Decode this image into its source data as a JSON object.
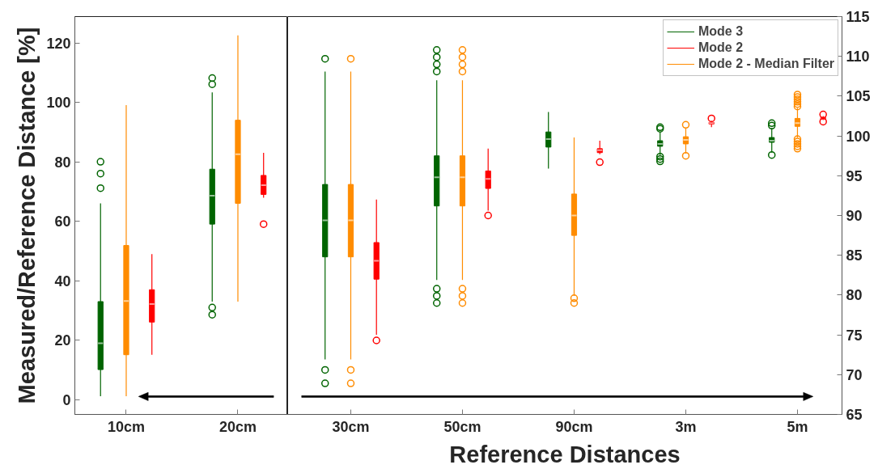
{
  "chart_data": [
    {
      "type": "box",
      "ylabel": "Measured/Reference Distance [%]",
      "categories": [
        "10cm",
        "20cm"
      ],
      "ylim": [
        -5,
        129
      ],
      "yticks": [
        0,
        20,
        40,
        60,
        80,
        100,
        120
      ],
      "marker": "circle",
      "series": [
        {
          "color": "#006400",
          "boxes": [
            {
              "low": 1.1,
              "q1": 10.1,
              "median": 19.0,
              "q3": 33.0,
              "high": 66.1,
              "outliers": [
                71.2,
                76.1,
                80.1
              ]
            },
            {
              "low": 33.0,
              "q1": 59.1,
              "median": 68.7,
              "q3": 77.6,
              "high": 103.5,
              "outliers": [
                28.6,
                31.0,
                106.2,
                108.3
              ]
            }
          ]
        },
        {
          "color": "#ff0000",
          "boxes": [
            {
              "low": 15.1,
              "q1": 26.1,
              "median": 32.2,
              "q3": 37.0,
              "high": 49.0
            },
            {
              "low": 68.0,
              "q1": 69.1,
              "median": 72.2,
              "q3": 75.5,
              "high": 83.1,
              "outliers": [
                59.1
              ]
            }
          ]
        },
        {
          "color": "#ff8c00",
          "boxes": [
            {
              "low": 1.1,
              "q1": 15.1,
              "median": 33.2,
              "q3": 51.9,
              "high": 99.2
            },
            {
              "low": 33.0,
              "q1": 66.1,
              "median": 82.6,
              "q3": 94.1,
              "high": 122.7
            }
          ]
        }
      ]
    },
    {
      "type": "box",
      "xlabel": "Reference Distances",
      "categories": [
        "30cm",
        "50cm",
        "90cm",
        "3m",
        "5m"
      ],
      "ylim": [
        65,
        115
      ],
      "yticks": [
        65,
        70,
        75,
        80,
        85,
        90,
        95,
        100,
        105,
        110,
        115
      ],
      "legend": "top right",
      "marker": "circle",
      "series": [
        {
          "name": "Mode 3",
          "color": "#006400",
          "boxes": [
            {
              "low": 71.9,
              "q1": 84.8,
              "median": 89.4,
              "q3": 93.9,
              "high": 108.1,
              "outliers": [
                68.9,
                70.6,
                109.7
              ]
            },
            {
              "low": 81.9,
              "q1": 91.2,
              "median": 94.8,
              "q3": 97.5,
              "high": 107.0,
              "outliers": [
                79.0,
                79.9,
                80.8,
                108.1,
                109.0,
                109.9,
                110.8
              ]
            },
            {
              "low": 95.9,
              "q1": 98.6,
              "median": 99.6,
              "q3": 100.5,
              "high": 103.0
            },
            {
              "low": 97.6,
              "q1": 98.7,
              "median": 99.0,
              "q3": 99.4,
              "high": 100.5,
              "outliers": [
                96.8,
                97.1,
                97.4,
                100.9,
                101.1
              ]
            },
            {
              "low": 97.9,
              "q1": 99.2,
              "median": 99.4,
              "q3": 99.8,
              "high": 101.0,
              "outliers": [
                97.6,
                101.3,
                101.6
              ]
            }
          ]
        },
        {
          "name": "Mode 2",
          "color": "#ff0000",
          "boxes": [
            {
              "low": 75.0,
              "q1": 82.0,
              "median": 84.3,
              "q3": 86.6,
              "high": 92.0,
              "outliers": [
                74.3
              ]
            },
            {
              "low": 90.6,
              "q1": 93.4,
              "median": 94.6,
              "q3": 95.6,
              "high": 98.4,
              "outliers": [
                90.0
              ]
            },
            {
              "low": 97.7,
              "q1": 97.9,
              "median": 98.2,
              "q3": 98.4,
              "high": 99.4,
              "outliers": [
                96.7
              ]
            },
            {
              "low": 101.1,
              "q1": 101.5,
              "median": 101.6,
              "q3": 101.7,
              "high": 101.9,
              "outliers": [
                102.2
              ]
            },
            {
              "low": 102.0,
              "q1": 102.1,
              "median": 102.2,
              "q3": 102.3,
              "high": 102.5,
              "outliers": [
                101.8,
                102.7
              ]
            }
          ]
        },
        {
          "name": "Mode 2 - Median Filter",
          "color": "#ff8c00",
          "boxes": [
            {
              "low": 71.9,
              "q1": 84.8,
              "median": 89.4,
              "q3": 93.9,
              "high": 108.1,
              "outliers": [
                68.9,
                70.6,
                109.7
              ]
            },
            {
              "low": 81.9,
              "q1": 91.2,
              "median": 94.8,
              "q3": 97.5,
              "high": 107.0,
              "outliers": [
                79.0,
                79.9,
                80.8,
                108.1,
                109.0,
                109.9,
                110.8
              ]
            },
            {
              "low": 79.9,
              "q1": 87.5,
              "median": 90.0,
              "q3": 92.7,
              "high": 99.8,
              "outliers": [
                79.0,
                79.6
              ]
            },
            {
              "low": 97.8,
              "q1": 99.0,
              "median": 99.5,
              "q3": 99.9,
              "high": 101.0,
              "outliers": [
                97.5,
                101.4
              ]
            },
            {
              "low": 99.8,
              "q1": 101.2,
              "median": 101.6,
              "q3": 102.2,
              "high": 103.5,
              "outliers": [
                98.4,
                98.7,
                99.0,
                99.3,
                99.6,
                103.7,
                104.0,
                104.3,
                104.6,
                104.9,
                105.2
              ]
            }
          ]
        }
      ]
    }
  ]
}
